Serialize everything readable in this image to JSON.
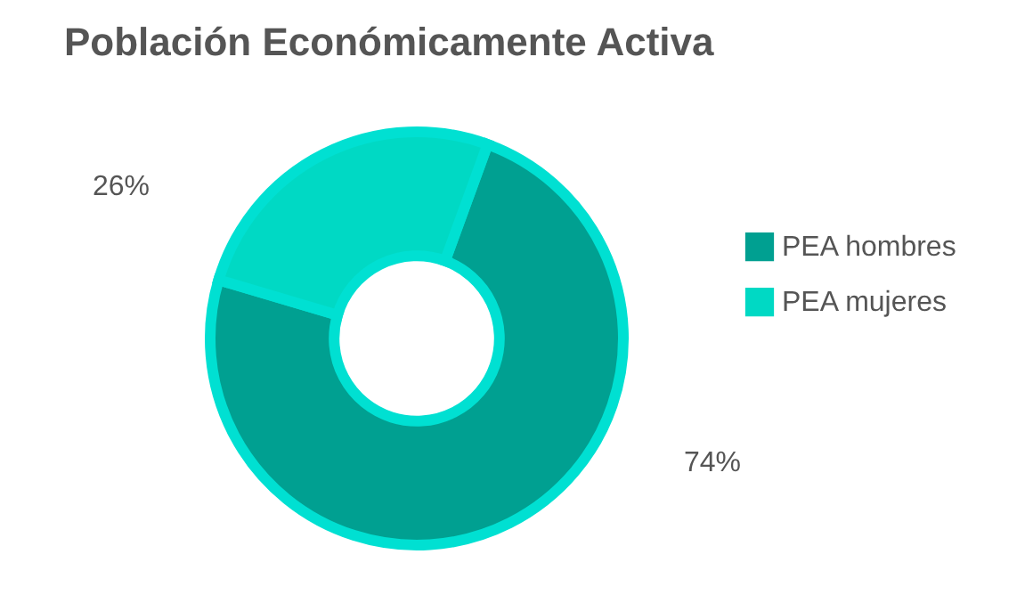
{
  "chart_data": {
    "type": "donut",
    "title": "Población Económicamente Activa",
    "categories": [
      "PEA hombres",
      "PEA mujeres"
    ],
    "values": [
      74,
      26
    ],
    "colors": [
      "#00a091",
      "#00d9c4"
    ],
    "data_labels": true,
    "value_labels": [
      "74%",
      "26%"
    ],
    "legend": "right"
  }
}
